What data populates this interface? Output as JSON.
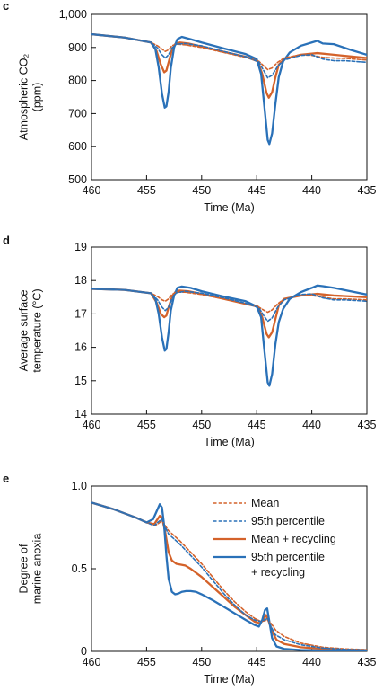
{
  "colors": {
    "orange": "#D4622A",
    "blue": "#2A71B8",
    "axis": "#111111"
  },
  "chart_data": [
    {
      "type": "line",
      "panel": "c",
      "xlabel": "Time (Ma)",
      "ylabel_lines": [
        "Atmospheric CO₂",
        "(ppm)"
      ],
      "xlim": [
        460,
        435
      ],
      "ylim": [
        500,
        1000
      ],
      "xticks": [
        460,
        455,
        450,
        445,
        440,
        435
      ],
      "xtick_labels": [
        "460",
        "455",
        "450",
        "445",
        "440",
        "435"
      ],
      "yticks": [
        500,
        600,
        700,
        800,
        900,
        1000
      ],
      "ytick_labels": [
        "500",
        "600",
        "700",
        "800",
        "900",
        "1,000"
      ],
      "legend": "none",
      "series": [
        {
          "key": "mean",
          "style": "dashed",
          "color": "orange",
          "x": [
            460,
            457,
            454.6,
            454,
            453.6,
            453.3,
            453.0,
            452.7,
            452.3,
            451.5,
            450,
            448,
            446,
            444.8,
            444.3,
            444.0,
            443.6,
            443.1,
            442.5,
            441,
            440,
            439,
            438,
            437,
            435
          ],
          "y": [
            940,
            930,
            915,
            905,
            895,
            888,
            893,
            905,
            910,
            908,
            900,
            885,
            870,
            858,
            842,
            833,
            838,
            855,
            868,
            878,
            876,
            870,
            868,
            867,
            862
          ]
        },
        {
          "key": "p95",
          "style": "dashed",
          "color": "blue",
          "x": [
            460,
            457,
            454.6,
            454,
            453.6,
            453.3,
            453.0,
            452.7,
            452.3,
            451.5,
            450,
            448,
            446,
            444.8,
            444.3,
            444.0,
            443.6,
            443.1,
            442.5,
            441,
            440,
            439,
            438,
            437,
            435
          ],
          "y": [
            940,
            930,
            915,
            898,
            878,
            868,
            878,
            898,
            910,
            912,
            905,
            888,
            872,
            856,
            826,
            808,
            816,
            843,
            862,
            876,
            878,
            865,
            860,
            860,
            855
          ]
        },
        {
          "key": "mean_recycling",
          "style": "solid",
          "color": "orange",
          "x": [
            460,
            457,
            454.6,
            454.1,
            453.7,
            453.4,
            453.2,
            453.0,
            452.7,
            452.4,
            452.0,
            451.2,
            450,
            448,
            446,
            444.9,
            444.5,
            444.1,
            443.9,
            443.6,
            443.3,
            443.0,
            442.5,
            441,
            439.5,
            438,
            435
          ],
          "y": [
            940,
            930,
            915,
            890,
            848,
            825,
            830,
            855,
            892,
            910,
            915,
            912,
            903,
            887,
            872,
            858,
            820,
            762,
            748,
            765,
            810,
            848,
            865,
            878,
            883,
            878,
            868
          ]
        },
        {
          "key": "p95_recycling",
          "style": "solid",
          "color": "blue",
          "x": [
            460,
            457,
            454.6,
            454.2,
            453.9,
            453.6,
            453.35,
            453.2,
            453.0,
            452.8,
            452.5,
            452.2,
            451.8,
            451.0,
            450,
            448,
            446,
            445.0,
            444.6,
            444.3,
            444.0,
            443.85,
            443.6,
            443.3,
            443.0,
            442.6,
            442.0,
            441,
            440,
            439.5,
            439,
            438,
            436.5,
            435
          ],
          "y": [
            940,
            930,
            915,
            895,
            840,
            760,
            718,
            722,
            765,
            838,
            900,
            925,
            932,
            925,
            915,
            897,
            880,
            865,
            820,
            720,
            620,
            608,
            640,
            730,
            810,
            858,
            885,
            905,
            915,
            920,
            912,
            910,
            893,
            878
          ]
        }
      ]
    },
    {
      "type": "line",
      "panel": "d",
      "xlabel": "Time (Ma)",
      "ylabel_lines": [
        "Average surface",
        "temperature (°C)"
      ],
      "xlim": [
        460,
        435
      ],
      "ylim": [
        14,
        19
      ],
      "xticks": [
        460,
        455,
        450,
        445,
        440,
        435
      ],
      "xtick_labels": [
        "460",
        "455",
        "450",
        "445",
        "440",
        "435"
      ],
      "yticks": [
        14,
        15,
        16,
        17,
        18,
        19
      ],
      "ytick_labels": [
        "14",
        "15",
        "16",
        "17",
        "18",
        "19"
      ],
      "legend": "none",
      "series": [
        {
          "key": "mean",
          "style": "dashed",
          "color": "orange",
          "x": [
            460,
            457,
            454.6,
            454,
            453.6,
            453.3,
            453.0,
            452.7,
            452.3,
            451.5,
            450,
            448,
            446,
            444.8,
            444.3,
            444.0,
            443.6,
            443.1,
            442.5,
            441,
            440,
            439,
            438,
            437,
            435
          ],
          "y": [
            17.75,
            17.72,
            17.62,
            17.52,
            17.42,
            17.38,
            17.45,
            17.58,
            17.65,
            17.65,
            17.58,
            17.45,
            17.3,
            17.2,
            17.1,
            17.05,
            17.12,
            17.3,
            17.45,
            17.55,
            17.55,
            17.5,
            17.45,
            17.45,
            17.42
          ]
        },
        {
          "key": "p95",
          "style": "dashed",
          "color": "blue",
          "x": [
            460,
            457,
            454.6,
            454,
            453.6,
            453.3,
            453.0,
            452.7,
            452.3,
            451.5,
            450,
            448,
            446,
            444.8,
            444.3,
            444.0,
            443.6,
            443.1,
            442.5,
            441,
            440,
            439,
            438,
            437,
            435
          ],
          "y": [
            17.75,
            17.72,
            17.62,
            17.42,
            17.2,
            17.1,
            17.2,
            17.45,
            17.63,
            17.68,
            17.62,
            17.48,
            17.32,
            17.18,
            16.92,
            16.78,
            16.88,
            17.2,
            17.42,
            17.58,
            17.6,
            17.48,
            17.42,
            17.42,
            17.38
          ]
        },
        {
          "key": "mean_recycling",
          "style": "solid",
          "color": "orange",
          "x": [
            460,
            457,
            454.6,
            454.1,
            453.7,
            453.4,
            453.2,
            453.0,
            452.7,
            452.4,
            452.0,
            451.2,
            450,
            448,
            446,
            444.9,
            444.5,
            444.1,
            443.9,
            443.6,
            443.3,
            443.0,
            442.5,
            441,
            439.5,
            438,
            435
          ],
          "y": [
            17.75,
            17.72,
            17.62,
            17.35,
            17.0,
            16.9,
            16.95,
            17.2,
            17.5,
            17.65,
            17.7,
            17.68,
            17.6,
            17.45,
            17.3,
            17.22,
            16.9,
            16.4,
            16.3,
            16.45,
            16.85,
            17.25,
            17.45,
            17.55,
            17.6,
            17.55,
            17.5
          ]
        },
        {
          "key": "p95_recycling",
          "style": "solid",
          "color": "blue",
          "x": [
            460,
            457,
            454.6,
            454.2,
            453.9,
            453.6,
            453.35,
            453.2,
            453.0,
            452.8,
            452.5,
            452.2,
            451.8,
            451.0,
            450,
            448,
            446,
            445.0,
            444.6,
            444.3,
            444.0,
            443.85,
            443.6,
            443.3,
            443.0,
            442.6,
            442.0,
            441,
            440,
            439.5,
            439,
            438,
            436.5,
            435
          ],
          "y": [
            17.75,
            17.72,
            17.62,
            17.45,
            17.0,
            16.3,
            15.9,
            15.95,
            16.45,
            17.1,
            17.55,
            17.78,
            17.82,
            17.78,
            17.68,
            17.52,
            17.38,
            17.22,
            16.9,
            15.9,
            14.95,
            14.85,
            15.2,
            16.1,
            16.75,
            17.15,
            17.45,
            17.65,
            17.78,
            17.85,
            17.83,
            17.78,
            17.68,
            17.58
          ]
        }
      ]
    },
    {
      "type": "line",
      "panel": "e",
      "xlabel": "Time (Ma)",
      "ylabel_lines": [
        "Degree of",
        "marine anoxia"
      ],
      "xlim": [
        460,
        435
      ],
      "ylim": [
        0,
        1
      ],
      "xticks": [
        460,
        455,
        450,
        445,
        440,
        435
      ],
      "xtick_labels": [
        "460",
        "455",
        "450",
        "445",
        "440",
        "435"
      ],
      "yticks": [
        0,
        0.5,
        1
      ],
      "ytick_labels": [
        "0",
        "0.5",
        "1.0"
      ],
      "legend": "top-right",
      "series": [
        {
          "key": "mean",
          "name": "Mean",
          "style": "dashed",
          "color": "orange",
          "x": [
            460,
            458,
            456,
            455,
            454.3,
            454.0,
            453.6,
            453.3,
            453.0,
            452.5,
            452,
            451,
            450,
            449,
            448,
            447,
            446,
            445.2,
            444.6,
            444.3,
            444.0,
            443.7,
            443.3,
            442.5,
            441,
            439,
            437,
            435
          ],
          "y": [
            0.9,
            0.86,
            0.81,
            0.78,
            0.76,
            0.77,
            0.79,
            0.76,
            0.73,
            0.7,
            0.67,
            0.6,
            0.53,
            0.45,
            0.37,
            0.3,
            0.24,
            0.2,
            0.18,
            0.185,
            0.19,
            0.17,
            0.13,
            0.09,
            0.05,
            0.025,
            0.015,
            0.01
          ]
        },
        {
          "key": "p95",
          "name": "95th percentile",
          "style": "dashed",
          "color": "blue",
          "x": [
            460,
            458,
            456,
            455,
            454.3,
            454.0,
            453.6,
            453.3,
            453.0,
            452.5,
            452,
            451,
            450,
            449,
            448,
            447,
            446,
            445.2,
            444.6,
            444.3,
            444.0,
            443.7,
            443.3,
            442.5,
            441,
            439,
            437,
            435
          ],
          "y": [
            0.9,
            0.86,
            0.81,
            0.78,
            0.76,
            0.78,
            0.8,
            0.75,
            0.71,
            0.68,
            0.65,
            0.58,
            0.51,
            0.43,
            0.35,
            0.28,
            0.22,
            0.19,
            0.18,
            0.19,
            0.2,
            0.15,
            0.1,
            0.07,
            0.04,
            0.02,
            0.012,
            0.008
          ]
        },
        {
          "key": "mean_recycling",
          "name": "Mean + recycling",
          "style": "solid",
          "color": "orange",
          "x": [
            460,
            458,
            456,
            455,
            454.3,
            454.0,
            453.8,
            453.6,
            453.3,
            453.0,
            452.7,
            452.3,
            451.5,
            451,
            450,
            449,
            448,
            447,
            446,
            445.2,
            444.7,
            444.4,
            444.15,
            443.9,
            443.6,
            443.2,
            442.5,
            441,
            439,
            437,
            435
          ],
          "y": [
            0.9,
            0.86,
            0.81,
            0.78,
            0.77,
            0.8,
            0.82,
            0.81,
            0.72,
            0.6,
            0.55,
            0.53,
            0.52,
            0.5,
            0.45,
            0.39,
            0.33,
            0.27,
            0.22,
            0.18,
            0.17,
            0.19,
            0.22,
            0.18,
            0.12,
            0.07,
            0.045,
            0.025,
            0.015,
            0.01,
            0.008
          ]
        },
        {
          "key": "p95_recycling",
          "name_lines": [
            "95th percentile",
            "+ recycling"
          ],
          "style": "solid",
          "color": "blue",
          "x": [
            460,
            458,
            456,
            455,
            454.4,
            454.0,
            453.8,
            453.6,
            453.4,
            453.2,
            453.0,
            452.7,
            452.4,
            452.1,
            451.8,
            451.4,
            451,
            450.5,
            450,
            449,
            448,
            447,
            446,
            445.2,
            444.8,
            444.5,
            444.25,
            444.05,
            443.9,
            443.6,
            443.2,
            442.5,
            441,
            439,
            437,
            435
          ],
          "y": [
            0.9,
            0.86,
            0.81,
            0.78,
            0.8,
            0.86,
            0.89,
            0.87,
            0.76,
            0.58,
            0.44,
            0.36,
            0.345,
            0.35,
            0.36,
            0.365,
            0.365,
            0.36,
            0.345,
            0.31,
            0.27,
            0.23,
            0.19,
            0.16,
            0.15,
            0.19,
            0.25,
            0.26,
            0.2,
            0.08,
            0.03,
            0.015,
            0.008,
            0.005,
            0.003,
            0.002
          ]
        }
      ]
    }
  ]
}
